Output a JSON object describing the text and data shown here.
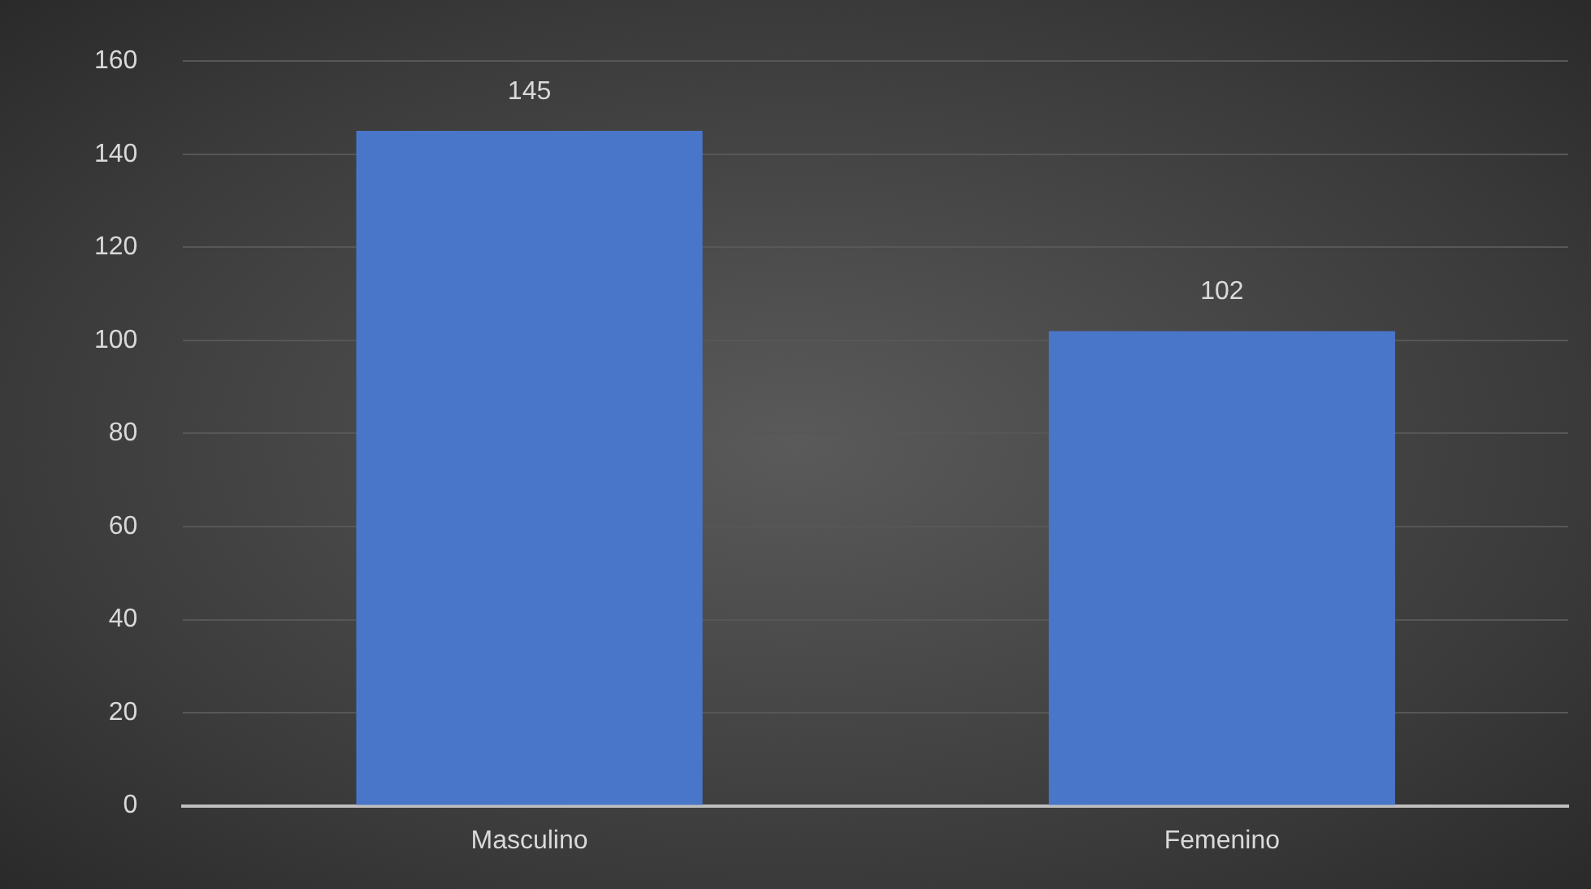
{
  "chart_data": {
    "type": "bar",
    "categories": [
      "Masculino",
      "Femenino"
    ],
    "values": [
      145,
      102
    ],
    "color": "#4a76c9",
    "ylim": [
      0,
      160
    ],
    "yticks": [
      0,
      20,
      40,
      60,
      80,
      100,
      120,
      140,
      160
    ],
    "grid": "y",
    "legend": false,
    "data_labels": true
  }
}
